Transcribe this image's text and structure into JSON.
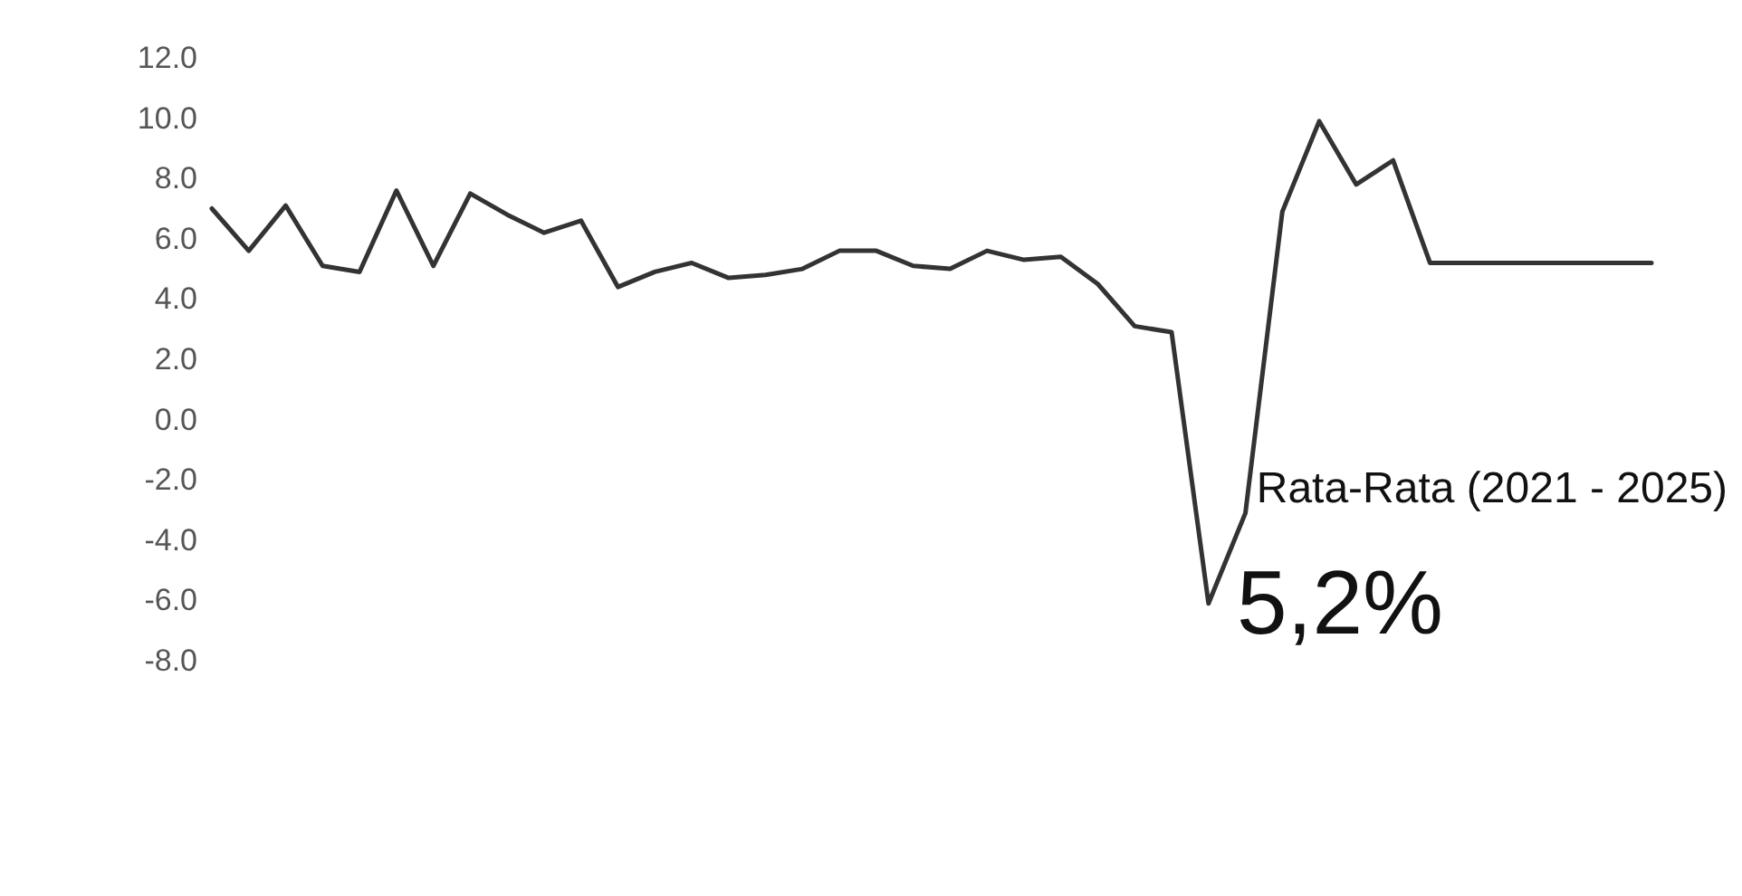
{
  "chart_data": {
    "type": "line",
    "categories": [
      null,
      null,
      null,
      null,
      null,
      null,
      null,
      null,
      null,
      null,
      null,
      null,
      null,
      null,
      null,
      null,
      null,
      null,
      null,
      null,
      null,
      null,
      null,
      null,
      null,
      null,
      null,
      null,
      null,
      null,
      null,
      null,
      null,
      null,
      null,
      null,
      null,
      null,
      null,
      null
    ],
    "series": [
      {
        "color": "#333333",
        "values": [
          7.0,
          5.6,
          7.1,
          5.1,
          4.9,
          7.6,
          5.1,
          7.5,
          6.8,
          6.2,
          6.6,
          4.4,
          4.9,
          5.2,
          4.7,
          4.8,
          5.0,
          5.6,
          5.6,
          5.1,
          5.0,
          5.6,
          5.3,
          5.4,
          4.5,
          3.1,
          2.9,
          -6.1,
          -3.1,
          6.9,
          9.9,
          7.8,
          8.6,
          5.2,
          5.2,
          5.2,
          5.2,
          5.2,
          5.2,
          5.2
        ]
      }
    ],
    "ylim": [
      -8,
      12
    ],
    "yticks": [
      {
        "value": -8,
        "label": "-8.0"
      },
      {
        "value": -6,
        "label": "-6.0"
      },
      {
        "value": -4,
        "label": "-4.0"
      },
      {
        "value": -2,
        "label": "-2.0"
      },
      {
        "value": 0,
        "label": "0.0"
      },
      {
        "value": 2,
        "label": "2.0"
      },
      {
        "value": 4,
        "label": "4.0"
      },
      {
        "value": 6,
        "label": "6.0"
      },
      {
        "value": 8,
        "label": "8.0"
      },
      {
        "value": 10,
        "label": "10.0"
      },
      {
        "value": 12,
        "label": "12.0"
      }
    ],
    "annotations": [
      "Rata-Rata (2021 - 2025)",
      "5,2%"
    ],
    "grid": false,
    "marker": "none",
    "line_style": "solid"
  }
}
